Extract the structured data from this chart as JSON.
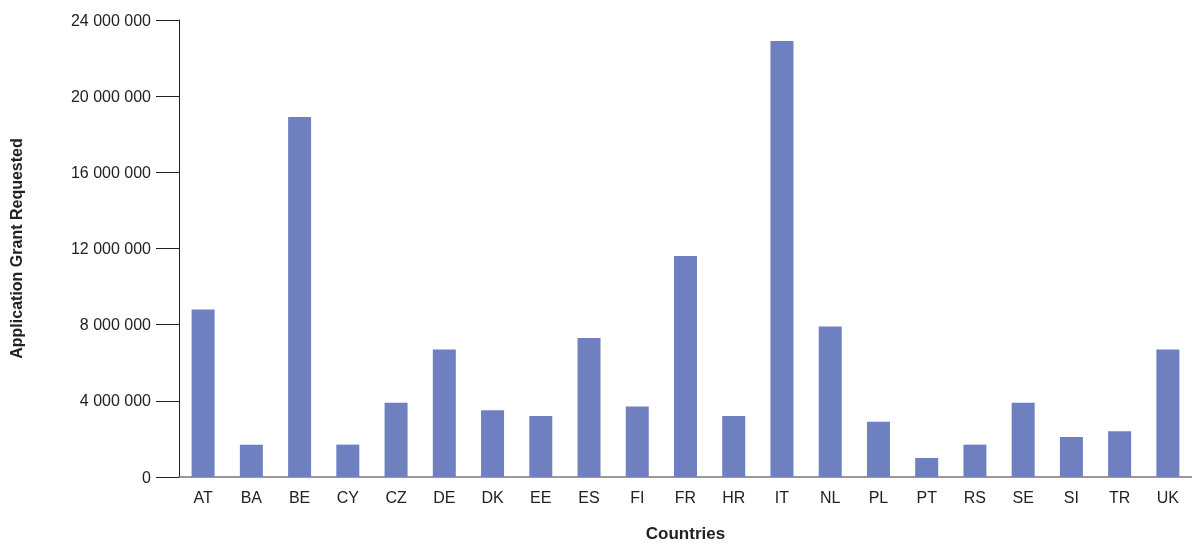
{
  "chart_data": {
    "type": "bar",
    "xlabel": "Countries",
    "ylabel": "Application Grant Requested",
    "categories": [
      "AT",
      "BA",
      "BE",
      "CY",
      "CZ",
      "DE",
      "DK",
      "EE",
      "ES",
      "FI",
      "FR",
      "HR",
      "IT",
      "NL",
      "PL",
      "PT",
      "RS",
      "SE",
      "SI",
      "TR",
      "UK"
    ],
    "values": [
      8800000,
      1700000,
      18900000,
      1700000,
      3900000,
      6700000,
      3500000,
      3200000,
      7300000,
      3700000,
      11600000,
      3200000,
      22900000,
      7900000,
      2900000,
      1000000,
      1700000,
      3900000,
      2100000,
      2400000,
      6700000
    ],
    "color": "#6e80c0",
    "ylim": [
      0,
      24000000
    ],
    "yticks": [
      {
        "value": 0,
        "label": "0"
      },
      {
        "value": 4000000,
        "label": "4 000 000"
      },
      {
        "value": 8000000,
        "label": "8 000 000"
      },
      {
        "value": 12000000,
        "label": "12 000 000"
      },
      {
        "value": 16000000,
        "label": "16 000 000"
      },
      {
        "value": 20000000,
        "label": "20 000 000"
      },
      {
        "value": 24000000,
        "label": "24 000 000"
      }
    ],
    "grid": false
  }
}
